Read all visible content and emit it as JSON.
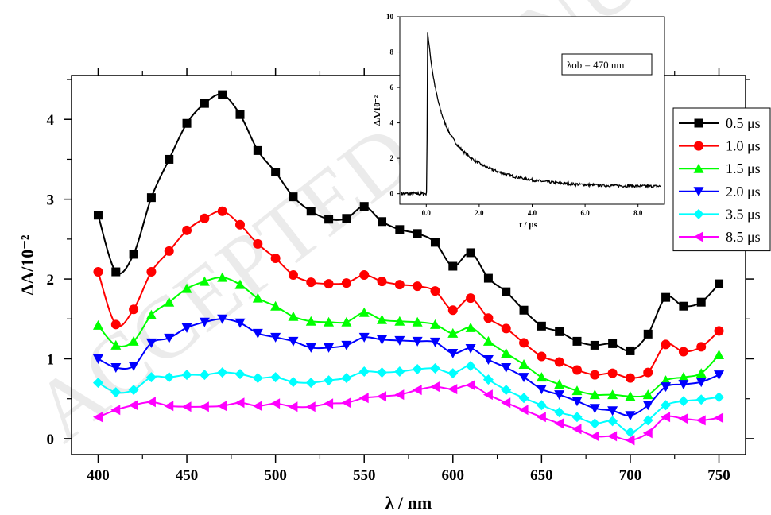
{
  "watermark": "ACCEPTED MANUSCRIPT",
  "chart_data": [
    {
      "type": "line",
      "xlabel": "λ / nm",
      "ylabel": "ΔA/10⁻²",
      "xlim": [
        385,
        765
      ],
      "ylim": [
        -0.2,
        4.55
      ],
      "xticks": [
        400,
        450,
        500,
        550,
        600,
        650,
        700,
        750
      ],
      "yticks": [
        0,
        1,
        2,
        3,
        4
      ],
      "grid": false,
      "legend_position": "right",
      "x": [
        400,
        410,
        420,
        430,
        440,
        450,
        460,
        470,
        480,
        490,
        500,
        510,
        520,
        530,
        540,
        550,
        560,
        570,
        580,
        590,
        600,
        610,
        620,
        630,
        640,
        650,
        660,
        670,
        680,
        690,
        700,
        710,
        720,
        730,
        740,
        750
      ],
      "series": [
        {
          "name": "0.5 μs",
          "color": "#000000",
          "marker": "square",
          "values": [
            2.8,
            2.09,
            2.31,
            3.02,
            3.5,
            3.95,
            4.2,
            4.31,
            4.06,
            3.61,
            3.34,
            3.03,
            2.85,
            2.75,
            2.76,
            2.91,
            2.72,
            2.62,
            2.57,
            2.46,
            2.16,
            2.33,
            2.01,
            1.84,
            1.61,
            1.41,
            1.34,
            1.22,
            1.17,
            1.19,
            1.1,
            1.31,
            1.77,
            1.66,
            1.71,
            1.94
          ]
        },
        {
          "name": "1.0 μs",
          "color": "#ff0000",
          "marker": "circle",
          "values": [
            2.09,
            1.43,
            1.62,
            2.09,
            2.35,
            2.61,
            2.76,
            2.85,
            2.68,
            2.44,
            2.26,
            2.05,
            1.96,
            1.94,
            1.95,
            2.05,
            1.97,
            1.93,
            1.91,
            1.85,
            1.61,
            1.76,
            1.51,
            1.38,
            1.2,
            1.03,
            0.96,
            0.86,
            0.8,
            0.82,
            0.76,
            0.83,
            1.18,
            1.09,
            1.15,
            1.35
          ]
        },
        {
          "name": "1.5 μs",
          "color": "#00ff00",
          "marker": "triangle-up",
          "values": [
            1.42,
            1.17,
            1.22,
            1.55,
            1.71,
            1.88,
            1.97,
            2.02,
            1.93,
            1.76,
            1.66,
            1.53,
            1.47,
            1.46,
            1.46,
            1.58,
            1.49,
            1.47,
            1.46,
            1.43,
            1.32,
            1.39,
            1.22,
            1.07,
            0.93,
            0.77,
            0.68,
            0.6,
            0.55,
            0.55,
            0.53,
            0.55,
            0.73,
            0.77,
            0.82,
            1.05
          ]
        },
        {
          "name": "2.0 μs",
          "color": "#0000ff",
          "marker": "triangle-down",
          "values": [
            1.0,
            0.89,
            0.91,
            1.2,
            1.26,
            1.39,
            1.46,
            1.5,
            1.45,
            1.32,
            1.27,
            1.22,
            1.14,
            1.14,
            1.17,
            1.27,
            1.24,
            1.23,
            1.22,
            1.21,
            1.07,
            1.13,
            0.99,
            0.89,
            0.77,
            0.62,
            0.55,
            0.47,
            0.38,
            0.35,
            0.29,
            0.42,
            0.65,
            0.68,
            0.71,
            0.8
          ]
        },
        {
          "name": "3.5 μs",
          "color": "#00ffff",
          "marker": "diamond",
          "values": [
            0.7,
            0.58,
            0.61,
            0.77,
            0.77,
            0.8,
            0.8,
            0.83,
            0.81,
            0.76,
            0.77,
            0.71,
            0.7,
            0.73,
            0.76,
            0.84,
            0.83,
            0.84,
            0.87,
            0.88,
            0.82,
            0.91,
            0.74,
            0.61,
            0.51,
            0.42,
            0.33,
            0.27,
            0.19,
            0.22,
            0.08,
            0.23,
            0.42,
            0.47,
            0.49,
            0.52
          ]
        },
        {
          "name": "8.5 μs",
          "color": "#ff00ff",
          "marker": "triangle-left",
          "values": [
            0.27,
            0.36,
            0.42,
            0.46,
            0.41,
            0.4,
            0.4,
            0.41,
            0.45,
            0.41,
            0.44,
            0.4,
            0.4,
            0.44,
            0.45,
            0.51,
            0.53,
            0.55,
            0.61,
            0.65,
            0.62,
            0.67,
            0.55,
            0.45,
            0.36,
            0.27,
            0.19,
            0.12,
            0.03,
            0.03,
            -0.02,
            0.07,
            0.27,
            0.25,
            0.23,
            0.26
          ]
        }
      ]
    },
    {
      "type": "line",
      "name": "inset",
      "xlabel": "t / μs",
      "ylabel": "ΔA/10⁻²",
      "annotation": "λob = 470 nm",
      "xlim": [
        -1.0,
        9.0
      ],
      "ylim": [
        -0.6,
        10
      ],
      "xticks": [
        "0.0",
        "2.0",
        "4.0",
        "6.0",
        "8.0"
      ],
      "yticks": [
        "0",
        "2",
        "4",
        "6",
        "8",
        "10"
      ],
      "decay": {
        "baseline": 0.0,
        "peak_time": 0.05,
        "peak_value": 9.2,
        "plateau_value": 0.4,
        "end_time": 8.85
      }
    }
  ]
}
